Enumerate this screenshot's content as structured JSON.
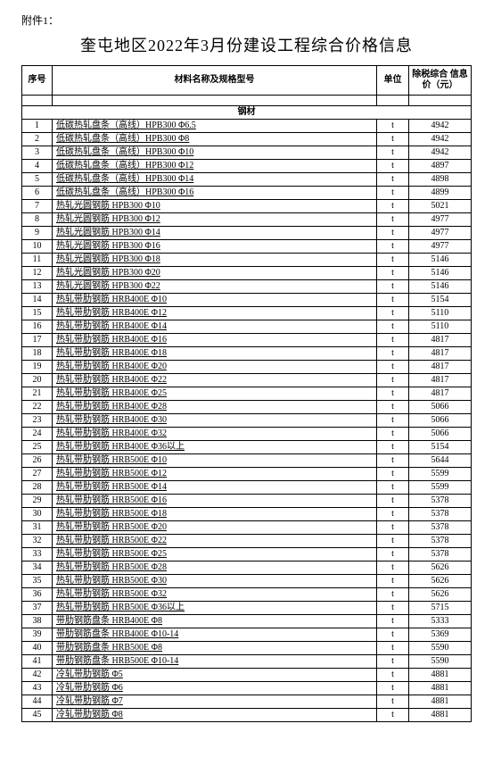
{
  "attachment_label": "附件1：",
  "title": "奎屯地区2022年3月份建设工程综合价格信息",
  "columns": {
    "idx": "序号",
    "name": "材料名称及规格型号",
    "unit": "单位",
    "price": "除税综合\n信息价（元）"
  },
  "category": "钢材",
  "rows": [
    {
      "n": 1,
      "name": "低碳热轧盘条（高线）HPB300 Φ6.5",
      "u": "t",
      "p": "4942"
    },
    {
      "n": 2,
      "name": "低碳热轧盘条（高线）HPB300 Φ8",
      "u": "t",
      "p": "4942"
    },
    {
      "n": 3,
      "name": "低碳热轧盘条（高线）HPB300 Φ10",
      "u": "t",
      "p": "4942"
    },
    {
      "n": 4,
      "name": "低碳热轧盘条（高线）HPB300 Φ12",
      "u": "t",
      "p": "4897"
    },
    {
      "n": 5,
      "name": "低碳热轧盘条（高线）HPB300 Φ14",
      "u": "t",
      "p": "4898"
    },
    {
      "n": 6,
      "name": "低碳热轧盘条（高线）HPB300 Φ16",
      "u": "t",
      "p": "4899"
    },
    {
      "n": 7,
      "name": "热轧光圆钢筋 HPB300 Φ10",
      "u": "t",
      "p": "5021"
    },
    {
      "n": 8,
      "name": "热轧光圆钢筋 HPB300 Φ12",
      "u": "t",
      "p": "4977"
    },
    {
      "n": 9,
      "name": "热轧光圆钢筋 HPB300 Φ14",
      "u": "t",
      "p": "4977"
    },
    {
      "n": 10,
      "name": "热轧光圆钢筋 HPB300 Φ16",
      "u": "t",
      "p": "4977"
    },
    {
      "n": 11,
      "name": "热轧光圆钢筋 HPB300 Φ18",
      "u": "t",
      "p": "5146"
    },
    {
      "n": 12,
      "name": "热轧光圆钢筋 HPB300 Φ20",
      "u": "t",
      "p": "5146"
    },
    {
      "n": 13,
      "name": "热轧光圆钢筋 HPB300 Φ22",
      "u": "t",
      "p": "5146"
    },
    {
      "n": 14,
      "name": "热轧带肋钢筋 HRB400E Φ10",
      "u": "t",
      "p": "5154"
    },
    {
      "n": 15,
      "name": "热轧带肋钢筋 HRB400E Φ12",
      "u": "t",
      "p": "5110"
    },
    {
      "n": 16,
      "name": "热轧带肋钢筋 HRB400E Φ14",
      "u": "t",
      "p": "5110"
    },
    {
      "n": 17,
      "name": "热轧带肋钢筋 HRB400E Φ16",
      "u": "t",
      "p": "4817"
    },
    {
      "n": 18,
      "name": "热轧带肋钢筋 HRB400E Φ18",
      "u": "t",
      "p": "4817"
    },
    {
      "n": 19,
      "name": "热轧带肋钢筋 HRB400E Φ20",
      "u": "t",
      "p": "4817"
    },
    {
      "n": 20,
      "name": "热轧带肋钢筋 HRB400E Φ22",
      "u": "t",
      "p": "4817"
    },
    {
      "n": 21,
      "name": "热轧带肋钢筋 HRB400E Φ25",
      "u": "t",
      "p": "4817"
    },
    {
      "n": 22,
      "name": "热轧带肋钢筋 HRB400E Φ28",
      "u": "t",
      "p": "5066"
    },
    {
      "n": 23,
      "name": "热轧带肋钢筋 HRB400E Φ30",
      "u": "t",
      "p": "5066"
    },
    {
      "n": 24,
      "name": "热轧带肋钢筋 HRB400E Φ32",
      "u": "t",
      "p": "5066"
    },
    {
      "n": 25,
      "name": "热轧带肋钢筋 HRB400E Φ36以上",
      "u": "t",
      "p": "5154"
    },
    {
      "n": 26,
      "name": "热轧带肋钢筋 HRB500E Φ10",
      "u": "t",
      "p": "5644"
    },
    {
      "n": 27,
      "name": "热轧带肋钢筋 HRB500E Φ12",
      "u": "t",
      "p": "5599"
    },
    {
      "n": 28,
      "name": "热轧带肋钢筋 HRB500E Φ14",
      "u": "t",
      "p": "5599"
    },
    {
      "n": 29,
      "name": "热轧带肋钢筋 HRB500E Φ16",
      "u": "t",
      "p": "5378"
    },
    {
      "n": 30,
      "name": "热轧带肋钢筋 HRB500E Φ18",
      "u": "t",
      "p": "5378"
    },
    {
      "n": 31,
      "name": "热轧带肋钢筋 HRB500E Φ20",
      "u": "t",
      "p": "5378"
    },
    {
      "n": 32,
      "name": "热轧带肋钢筋 HRB500E Φ22",
      "u": "t",
      "p": "5378"
    },
    {
      "n": 33,
      "name": "热轧带肋钢筋 HRB500E Φ25",
      "u": "t",
      "p": "5378"
    },
    {
      "n": 34,
      "name": "热轧带肋钢筋 HRB500E Φ28",
      "u": "t",
      "p": "5626"
    },
    {
      "n": 35,
      "name": "热轧带肋钢筋 HRB500E Φ30",
      "u": "t",
      "p": "5626"
    },
    {
      "n": 36,
      "name": "热轧带肋钢筋 HRB500E Φ32",
      "u": "t",
      "p": "5626"
    },
    {
      "n": 37,
      "name": "热轧带肋钢筋 HRB500E Φ36以上",
      "u": "t",
      "p": "5715"
    },
    {
      "n": 38,
      "name": "带肋钢筋盘条 HRB400E Φ8",
      "u": "t",
      "p": "5333"
    },
    {
      "n": 39,
      "name": "带肋钢筋盘条 HRB400E Φ10-14",
      "u": "t",
      "p": "5369"
    },
    {
      "n": 40,
      "name": "带肋钢筋盘条 HRB500E Φ8",
      "u": "t",
      "p": "5590"
    },
    {
      "n": 41,
      "name": "带肋钢筋盘条 HRB500E Φ10-14",
      "u": "t",
      "p": "5590"
    },
    {
      "n": 42,
      "name": "冷轧带肋钢筋 Φ5",
      "u": "t",
      "p": "4881"
    },
    {
      "n": 43,
      "name": "冷轧带肋钢筋 Φ6",
      "u": "t",
      "p": "4881"
    },
    {
      "n": 44,
      "name": "冷轧带肋钢筋 Φ7",
      "u": "t",
      "p": "4881"
    },
    {
      "n": 45,
      "name": "冷轧带肋钢筋 Φ8",
      "u": "t",
      "p": "4881"
    }
  ]
}
